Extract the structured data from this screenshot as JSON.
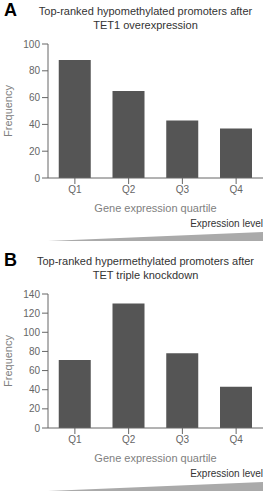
{
  "chart_data": [
    {
      "type": "bar",
      "title": "Top-ranked hypomethylated promoters after\nTET1 overexpression",
      "annotations": [
        "A",
        "Expression level"
      ],
      "categories": [
        "Q1",
        "Q2",
        "Q3",
        "Q4"
      ],
      "values": [
        88,
        65,
        43,
        37
      ],
      "color": "#555555",
      "xlabel": "Gene expression quartile",
      "ylabel": "Frequency",
      "ylim": [
        0,
        100
      ],
      "yticks": [
        0,
        20,
        40,
        60,
        80,
        100
      ],
      "grid": false
    },
    {
      "type": "bar",
      "title": "Top-ranked hypermethylated promoters after\nTET triple knockdown",
      "annotations": [
        "B",
        "Expression level"
      ],
      "categories": [
        "Q1",
        "Q2",
        "Q3",
        "Q4"
      ],
      "values": [
        71,
        130,
        78,
        43
      ],
      "color": "#555555",
      "xlabel": "Gene expression quartile",
      "ylabel": "Frequency",
      "ylim": [
        0,
        140
      ],
      "yticks": [
        0,
        20,
        40,
        60,
        80,
        100,
        120,
        140
      ],
      "grid": false
    }
  ]
}
